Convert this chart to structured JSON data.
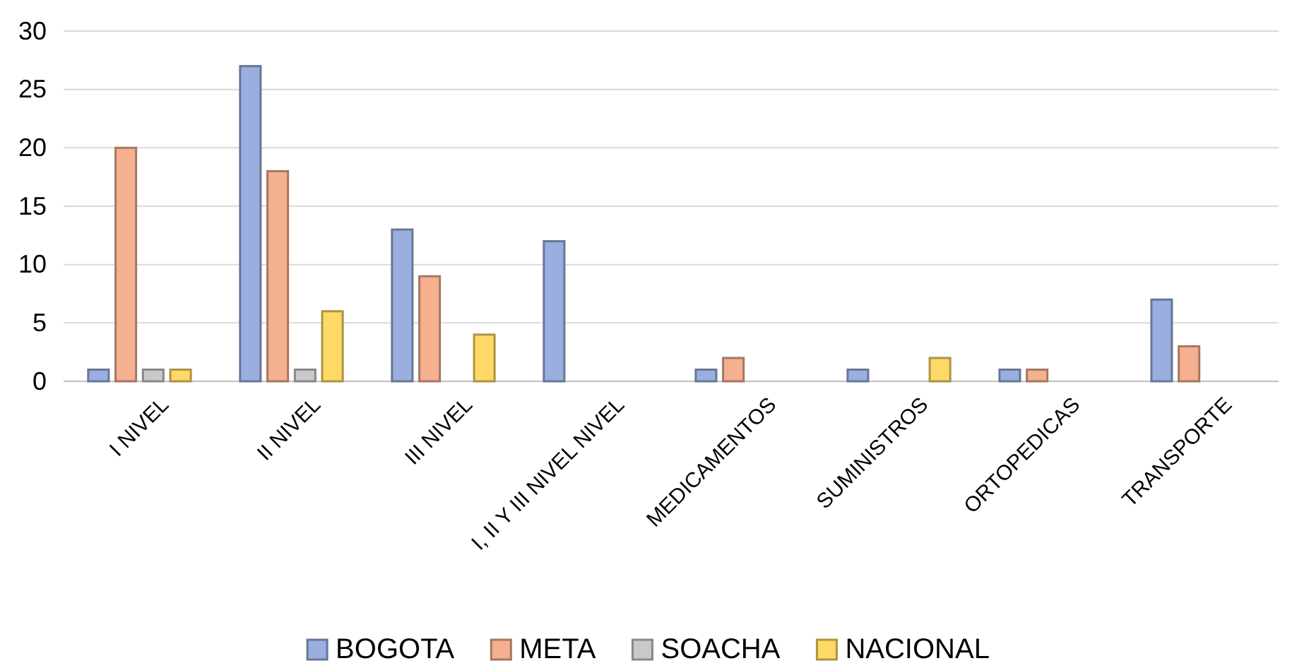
{
  "chart_data": {
    "type": "bar",
    "categories": [
      "I NIVEL",
      "II NIVEL",
      "III NIVEL",
      "I, II Y III NIVEL NIVEL",
      "MEDICAMENTOS",
      "SUMINISTROS",
      "ORTOPEDICAS",
      "TRANSPORTE"
    ],
    "series": [
      {
        "name": "BOGOTA",
        "color": "#9aaee0",
        "values": [
          1,
          27,
          13,
          12,
          1,
          1,
          1,
          7
        ]
      },
      {
        "name": "META",
        "color": "#f4b08f",
        "values": [
          20,
          18,
          9,
          null,
          2,
          null,
          1,
          3
        ]
      },
      {
        "name": "SOACHA",
        "color": "#c9c9c9",
        "values": [
          1,
          1,
          null,
          null,
          null,
          null,
          null,
          null
        ]
      },
      {
        "name": "NACIONAL",
        "color": "#ffd966",
        "values": [
          1,
          6,
          4,
          null,
          null,
          2,
          null,
          null
        ]
      }
    ],
    "ylim": [
      0,
      30
    ],
    "yticks": [
      0,
      5,
      10,
      15,
      20,
      25,
      30
    ],
    "grid": "y",
    "legend": "bottom"
  }
}
